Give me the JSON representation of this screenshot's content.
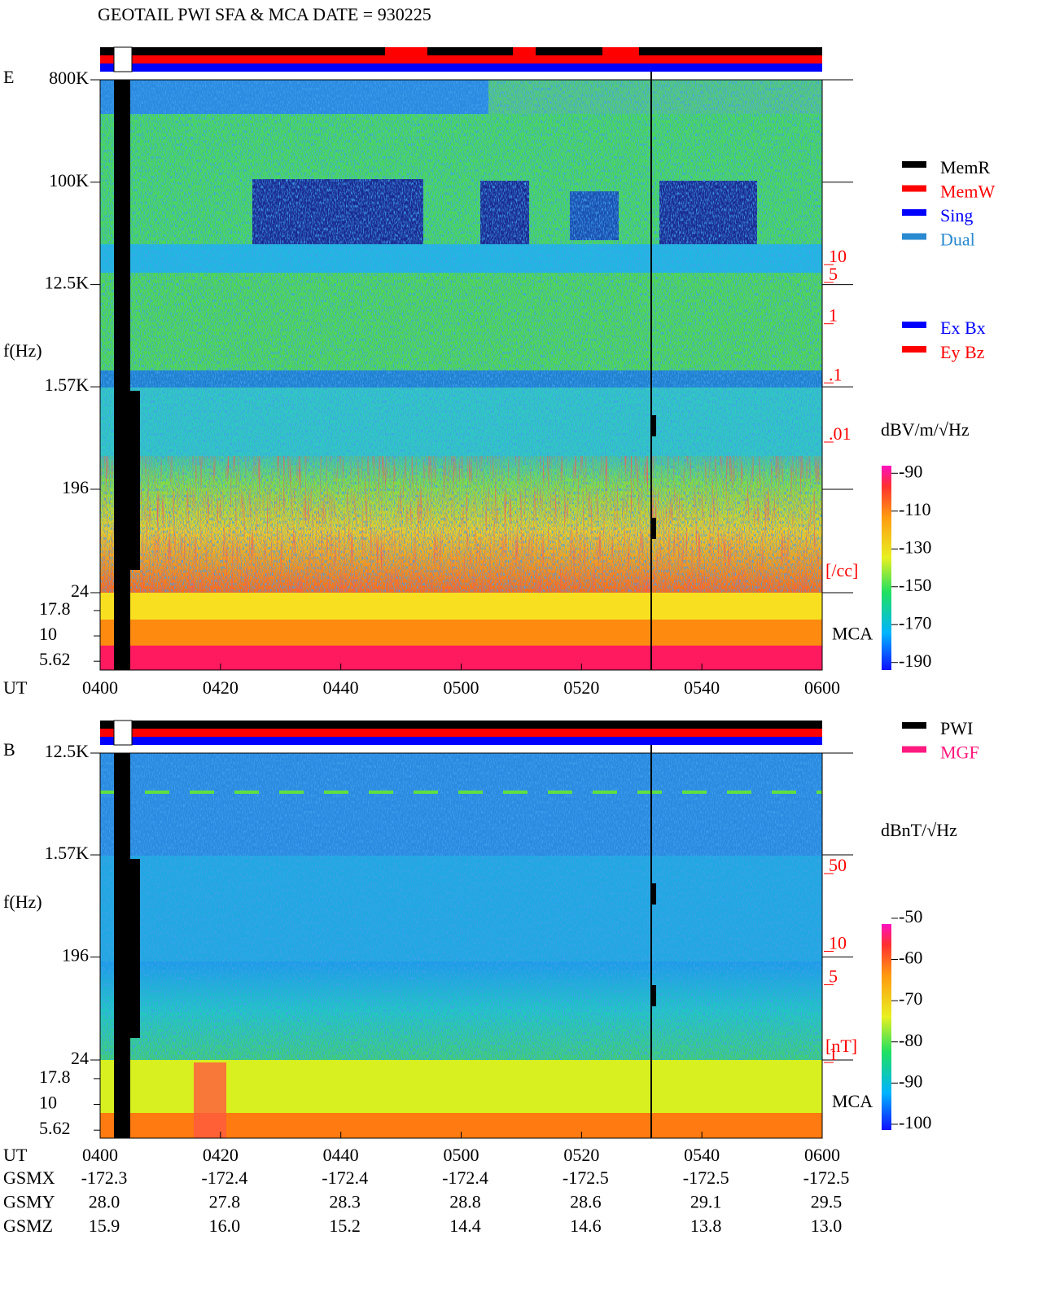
{
  "title": "GEOTAIL  PWI SFA & MCA   DATE = 930225",
  "chart_data": [
    {
      "type": "spectrogram",
      "panel": "E",
      "ylabel": "f(Hz)",
      "xlabel": "UT",
      "categories": [
        "0400",
        "0420",
        "0440",
        "0500",
        "0520",
        "0540",
        "0600"
      ],
      "ylim": [
        24,
        800000
      ],
      "yticks": [
        {
          "value": 800000,
          "label": "800K"
        },
        {
          "value": 100000,
          "label": "100K"
        },
        {
          "value": 12500,
          "label": "12.5K"
        },
        {
          "value": 1570,
          "label": "1.57K"
        },
        196,
        24
      ],
      "mca_ylim": [
        4.6,
        26.7
      ],
      "mca_ticks": [
        17.8,
        10,
        5.62
      ],
      "mca_label": "MCA",
      "y2lim": [
        0.01,
        10
      ],
      "y2ticks": [
        10,
        5,
        1,
        {
          "value": 0.1,
          "label": ".1"
        },
        {
          "value": 0.01,
          "label": ".01"
        }
      ],
      "y2label": "[/cc]",
      "colorbar_label": "dBV/m/√Hz",
      "zlim": [
        -194,
        -86
      ],
      "zticks": [
        -90,
        -110,
        -130,
        -150,
        -170,
        -190
      ],
      "legend": [
        {
          "name": "MemR",
          "color": "#000000"
        },
        {
          "name": "MemW",
          "color": "#ff0000"
        },
        {
          "name": "Sing",
          "color": "#0000ff"
        },
        {
          "name": "Dual",
          "color": "#2a8ad0"
        }
      ],
      "legend2": [
        {
          "name": "Ex Bx",
          "color": "#0000ff"
        },
        {
          "name": "Ey Bz",
          "color": "#ff0000"
        }
      ]
    },
    {
      "type": "spectrogram",
      "panel": "B",
      "ylabel": "f(Hz)",
      "xlabel": "UT",
      "categories": [
        "0400",
        "0420",
        "0440",
        "0500",
        "0520",
        "0540",
        "0600"
      ],
      "ylim": [
        24,
        12500
      ],
      "yticks": [
        {
          "value": 12500,
          "label": "12.5K"
        },
        {
          "value": 1570,
          "label": "1.57K"
        },
        196,
        24
      ],
      "mca_ylim": [
        4.7,
        27
      ],
      "mca_ticks": [
        17.8,
        10,
        5.62
      ],
      "mca_label": "MCA",
      "y2lim": [
        1,
        50
      ],
      "y2ticks": [
        50,
        10,
        5,
        1
      ],
      "y2label": "[nT]",
      "colorbar_label": "dBnT/√Hz",
      "zlim": [
        -101.4,
        -51.4
      ],
      "zticks": [
        -50,
        -60,
        -70,
        -80,
        -90,
        -100
      ],
      "legend": [
        {
          "name": "PWI",
          "color": "#000000"
        },
        {
          "name": "MGF",
          "color": "#ff1a80"
        }
      ],
      "ephemeris": [
        {
          "name": "GSMX",
          "values": [
            "-172.3",
            "-172.4",
            "-172.4",
            "-172.4",
            "-172.5",
            "-172.5",
            "-172.5"
          ]
        },
        {
          "name": "GSMY",
          "values": [
            "28.0",
            "27.8",
            "28.3",
            "28.8",
            "28.6",
            "29.1",
            "29.5"
          ]
        },
        {
          "name": "GSMZ",
          "values": [
            "15.9",
            "16.0",
            "15.2",
            "14.4",
            "14.6",
            "13.8",
            "13.0"
          ]
        }
      ]
    }
  ]
}
